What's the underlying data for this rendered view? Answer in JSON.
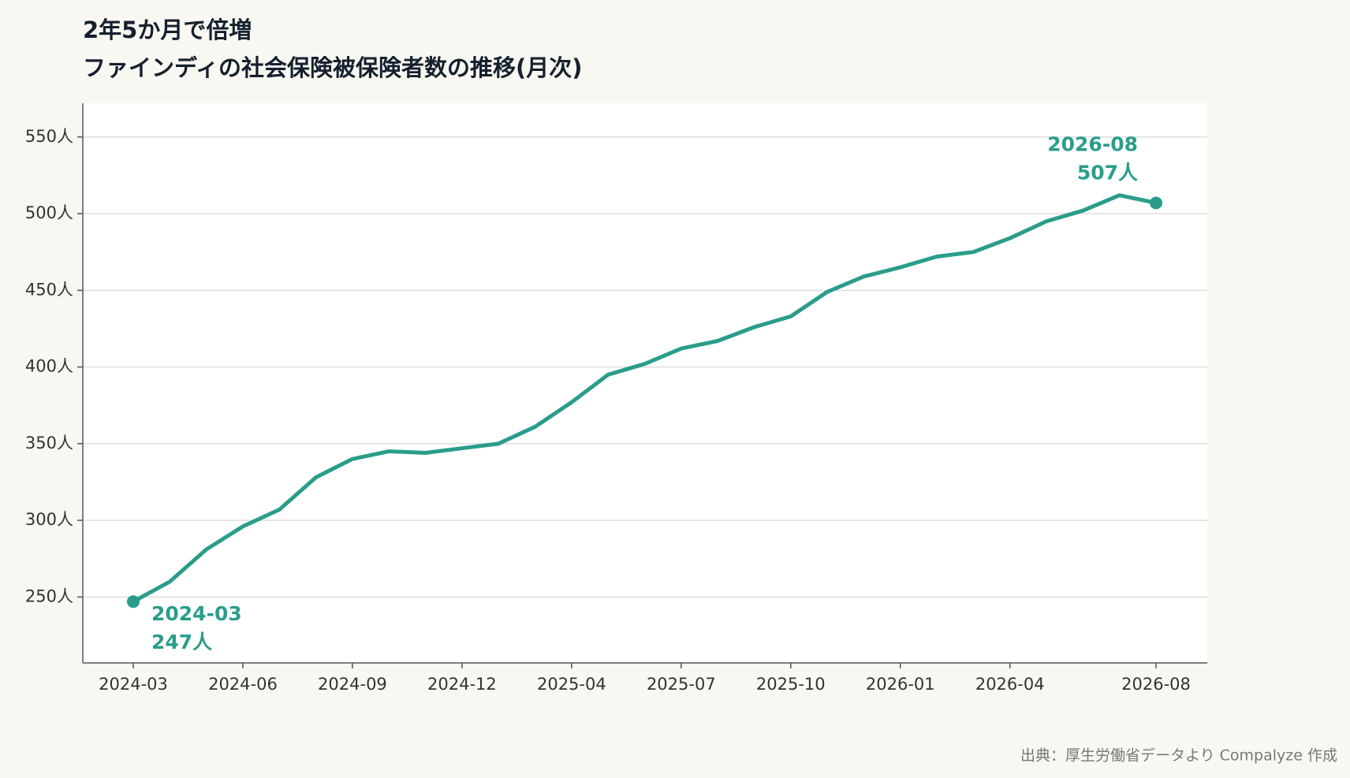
{
  "chart_data": {
    "type": "line",
    "title": "2年5か月で倍増",
    "subtitle": "ファインディの社会保険被保険者数の推移(月次)",
    "source": "出典：厚生労働省データより Compalyze 作成",
    "categories": [
      "2024-03",
      null,
      null,
      "2024-06",
      null,
      null,
      "2024-09",
      null,
      null,
      "2024-12",
      null,
      null,
      "2025-04",
      null,
      null,
      "2025-07",
      null,
      null,
      "2025-10",
      null,
      null,
      "2026-01",
      null,
      null,
      "2026-04",
      null,
      null,
      null,
      "2026-08"
    ],
    "series": [
      {
        "name": "社会保険被保険者数",
        "color": "#2a9d8a",
        "values": [
          247,
          260,
          281,
          296,
          307,
          328,
          340,
          345,
          344,
          347,
          350,
          361,
          377,
          395,
          402,
          412,
          417,
          426,
          433,
          449,
          459,
          465,
          472,
          475,
          484,
          495,
          502,
          512,
          507
        ]
      }
    ],
    "annotations": [
      {
        "lines": [
          "2024-03",
          "247人"
        ]
      },
      {
        "lines": [
          "2026-08",
          "507人"
        ]
      }
    ],
    "ylim": [
      207,
      572
    ],
    "yticks": [
      {
        "value": 250,
        "label": "250人"
      },
      {
        "value": 300,
        "label": "300人"
      },
      {
        "value": 350,
        "label": "350人"
      },
      {
        "value": 400,
        "label": "400人"
      },
      {
        "value": 450,
        "label": "450人"
      },
      {
        "value": 500,
        "label": "500人"
      },
      {
        "value": 550,
        "label": "550人"
      }
    ],
    "grid": true
  }
}
